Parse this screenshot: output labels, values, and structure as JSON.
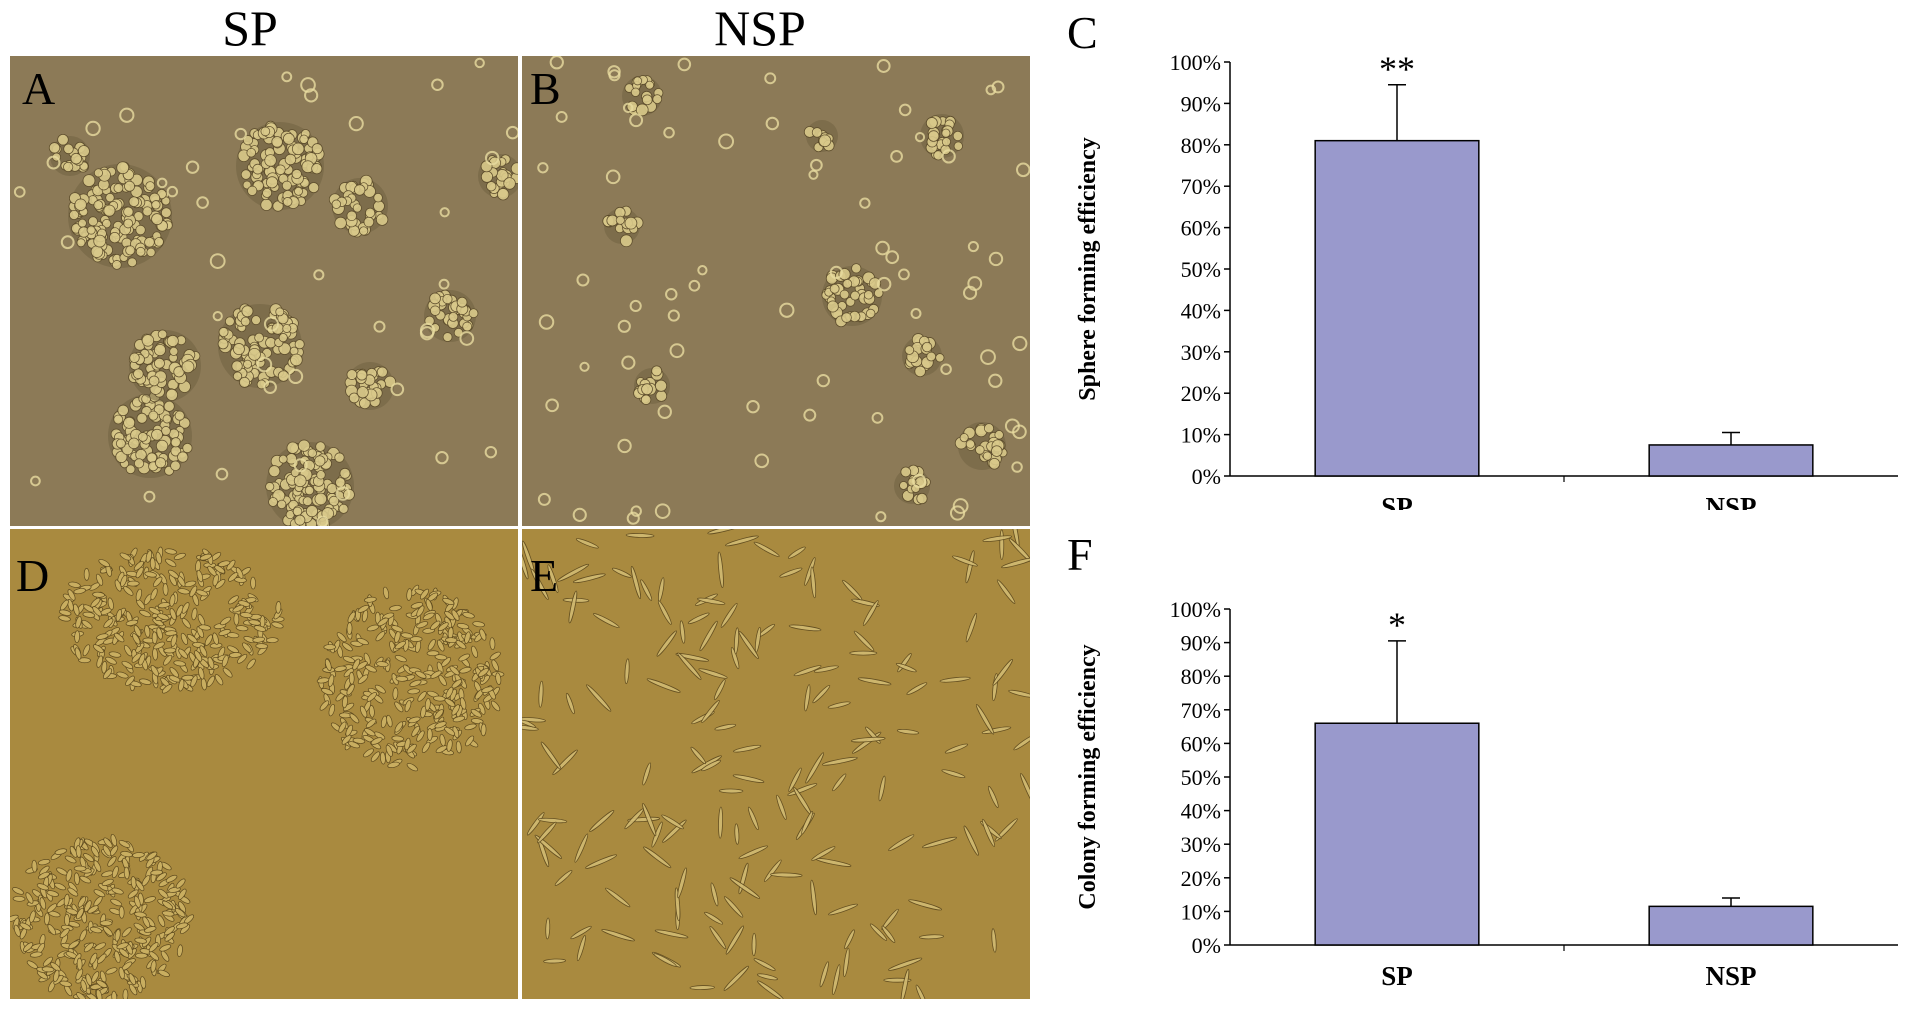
{
  "figure": {
    "column_headers": [
      "SP",
      "NSP"
    ],
    "panels": {
      "A": {
        "letter": "A"
      },
      "B": {
        "letter": "B"
      },
      "D": {
        "letter": "D"
      },
      "E": {
        "letter": "E"
      }
    },
    "colors": {
      "bar_fill": "#9999cc",
      "sphere_bg": "#8c7a57",
      "colony_bg": "#a98a3f",
      "cell": "#d9c98a"
    }
  },
  "chart_data": [
    {
      "panel": "C",
      "type": "bar",
      "categories": [
        "SP",
        "NSP"
      ],
      "values": [
        81,
        7.5
      ],
      "errors": [
        13.5,
        3
      ],
      "significance": [
        "**",
        ""
      ],
      "ylabel": "Sphere forming efficiency",
      "xlabel": "",
      "ylim": [
        0,
        100
      ],
      "yticks": [
        "0%",
        "10%",
        "20%",
        "30%",
        "40%",
        "50%",
        "60%",
        "70%",
        "80%",
        "90%",
        "100%"
      ],
      "grid": false
    },
    {
      "panel": "F",
      "type": "bar",
      "categories": [
        "SP",
        "NSP"
      ],
      "values": [
        66,
        11.5
      ],
      "errors": [
        24.5,
        2.5
      ],
      "significance": [
        "*",
        ""
      ],
      "ylabel": "Colony forming efficiency",
      "xlabel": "",
      "ylim": [
        0,
        100
      ],
      "yticks": [
        "0%",
        "10%",
        "20%",
        "30%",
        "40%",
        "50%",
        "60%",
        "70%",
        "80%",
        "90%",
        "100%"
      ],
      "grid": false
    }
  ]
}
